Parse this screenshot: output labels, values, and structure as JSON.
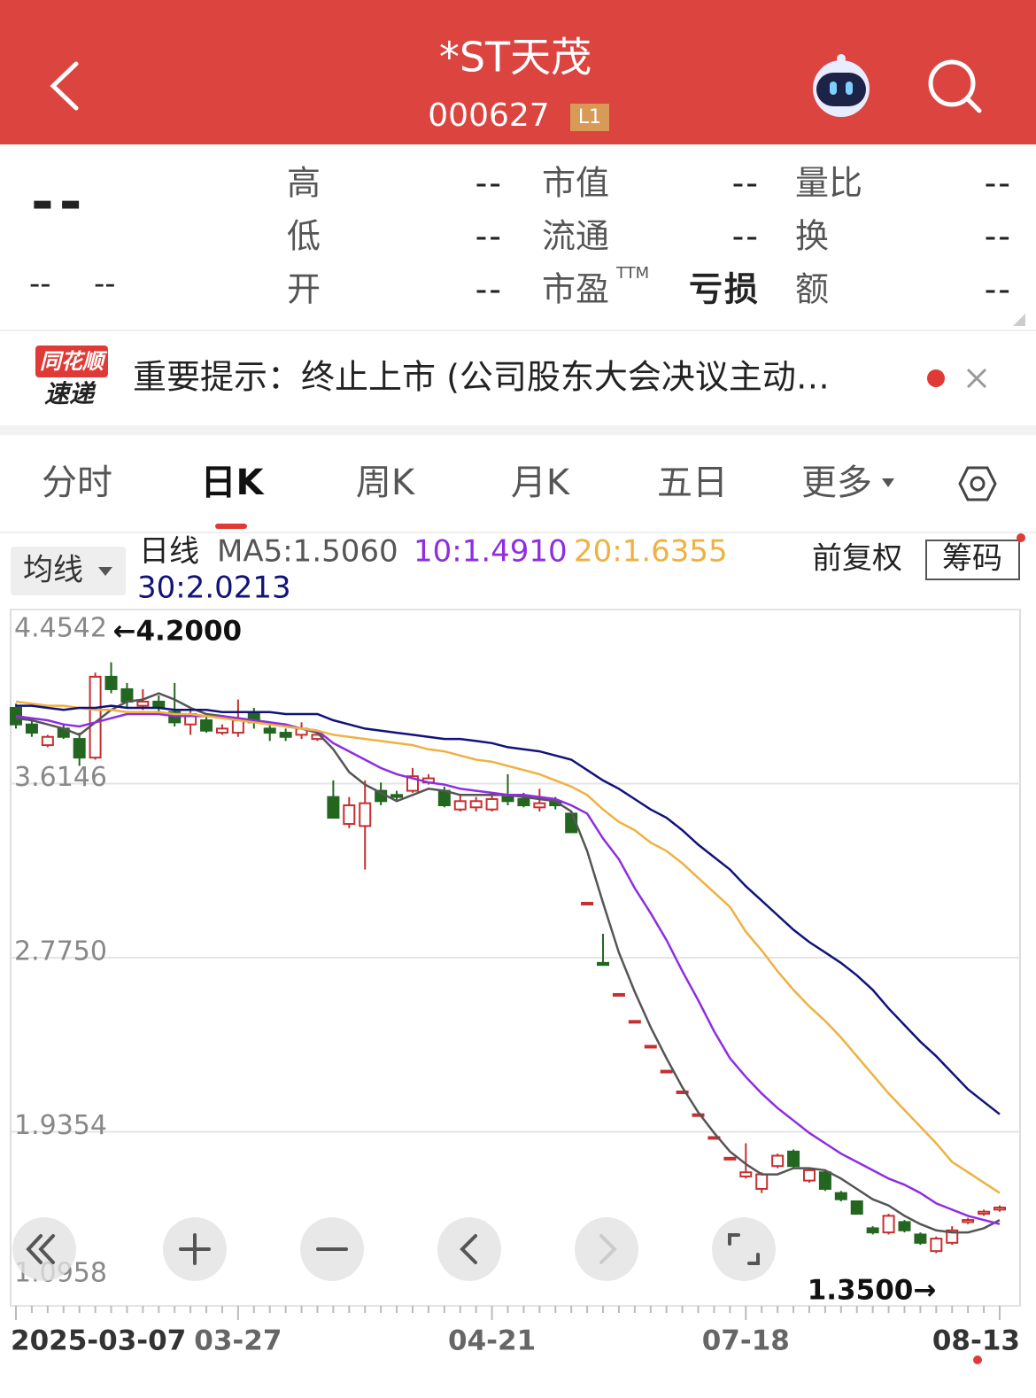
{
  "header": {
    "title": "*ST天茂",
    "code": "000627",
    "badge": "L1"
  },
  "quote": {
    "price": "--",
    "change": [
      "--",
      "--"
    ],
    "fields": [
      {
        "label": "高",
        "value": "--"
      },
      {
        "label": "低",
        "value": "--"
      },
      {
        "label": "开",
        "value": "--"
      },
      {
        "label": "市值",
        "value": "--"
      },
      {
        "label": "流通",
        "value": "--"
      },
      {
        "label": "市盈",
        "sup": "TTM",
        "value": "亏损"
      },
      {
        "label": "量比",
        "value": "--"
      },
      {
        "label": "换",
        "value": "--"
      },
      {
        "label": "额",
        "value": "--"
      }
    ]
  },
  "notice": {
    "logo_top": "同花顺",
    "logo_bottom": "速递",
    "text": "重要提示：终止上市 (公司股东大会决议主动…"
  },
  "tabs": [
    "分时",
    "日K",
    "周K",
    "月K",
    "五日",
    "更多"
  ],
  "toolbar": {
    "ma_button": "均线",
    "adjust": "前复权",
    "chips": "筹码"
  },
  "chart_data": {
    "type": "candlestick",
    "legend_title": "日线",
    "up_color": "#c62f2f",
    "down_color": "#23661f",
    "grid": true,
    "ylim": [
      1.0958,
      4.4542
    ],
    "yticks": [
      4.4542,
      3.6146,
      {
        "value": 2.775,
        "label": "2.7750"
      },
      1.9354,
      1.0958
    ],
    "annotations": [
      {
        "text": "←4.2000"
      },
      {
        "text": "1.3500→"
      }
    ],
    "categories": [
      "2025-03-07",
      null,
      null,
      null,
      null,
      null,
      null,
      null,
      null,
      null,
      null,
      null,
      null,
      null,
      "03-27",
      null,
      null,
      null,
      null,
      null,
      null,
      null,
      null,
      null,
      null,
      null,
      null,
      null,
      null,
      null,
      "04-21",
      null,
      null,
      null,
      null,
      null,
      null,
      null,
      null,
      null,
      null,
      null,
      null,
      null,
      null,
      null,
      "07-18",
      null,
      null,
      null,
      null,
      null,
      null,
      null,
      null,
      null,
      null,
      null,
      null,
      null,
      null,
      null,
      "08-13"
    ],
    "open": [
      3.98,
      3.9,
      3.8,
      3.88,
      3.83,
      3.74,
      4.13,
      4.07,
      3.99,
      4.01,
      3.96,
      3.9,
      3.92,
      3.86,
      3.86,
      3.95,
      3.88,
      3.86,
      3.85,
      3.83,
      3.55,
      3.42,
      3.41,
      3.58,
      3.56,
      3.58,
      3.62,
      3.58,
      3.49,
      3.5,
      3.49,
      3.55,
      3.54,
      3.5,
      3.53,
      3.47,
      3.04,
      2.75,
      2.6,
      2.47,
      2.35,
      2.23,
      2.13,
      2.02,
      1.91,
      1.81,
      1.72,
      1.66,
      1.77,
      1.84,
      1.7,
      1.74,
      1.64,
      1.6,
      1.47,
      1.45,
      1.5,
      1.44,
      1.36,
      1.4,
      1.5,
      1.54,
      1.56
    ],
    "high": [
      4.0,
      3.92,
      3.85,
      3.9,
      3.86,
      4.15,
      4.2,
      4.1,
      4.07,
      4.04,
      4.1,
      3.98,
      3.94,
      3.9,
      4.02,
      3.98,
      3.9,
      3.88,
      3.91,
      3.87,
      3.63,
      3.55,
      3.63,
      3.62,
      3.58,
      3.69,
      3.66,
      3.6,
      3.56,
      3.55,
      3.56,
      3.66,
      3.57,
      3.59,
      3.55,
      3.48,
      3.04,
      2.89,
      2.6,
      2.47,
      2.35,
      2.23,
      2.13,
      2.02,
      1.91,
      1.81,
      1.88,
      1.74,
      1.83,
      1.85,
      1.76,
      1.75,
      1.65,
      1.6,
      1.48,
      1.54,
      1.51,
      1.45,
      1.43,
      1.48,
      1.52,
      1.56,
      1.58
    ],
    "low": [
      3.88,
      3.84,
      3.79,
      3.83,
      3.7,
      3.73,
      4.05,
      3.98,
      3.97,
      3.96,
      3.89,
      3.85,
      3.86,
      3.85,
      3.84,
      3.88,
      3.82,
      3.82,
      3.83,
      3.82,
      3.45,
      3.4,
      3.2,
      3.51,
      3.53,
      3.57,
      3.61,
      3.5,
      3.48,
      3.48,
      3.48,
      3.51,
      3.5,
      3.48,
      3.49,
      3.38,
      3.04,
      2.74,
      2.6,
      2.47,
      2.35,
      2.23,
      2.13,
      2.02,
      1.91,
      1.81,
      1.71,
      1.64,
      1.76,
      1.76,
      1.69,
      1.65,
      1.6,
      1.54,
      1.44,
      1.44,
      1.45,
      1.39,
      1.35,
      1.39,
      1.49,
      1.53,
      1.55
    ],
    "close": [
      3.9,
      3.86,
      3.84,
      3.84,
      3.74,
      4.13,
      4.07,
      4.01,
      4.01,
      3.98,
      3.91,
      3.95,
      3.87,
      3.88,
      3.92,
      3.91,
      3.86,
      3.84,
      3.88,
      3.85,
      3.45,
      3.51,
      3.52,
      3.53,
      3.55,
      3.65,
      3.64,
      3.51,
      3.53,
      3.53,
      3.54,
      3.53,
      3.51,
      3.52,
      3.51,
      3.38,
      3.04,
      2.74,
      2.6,
      2.47,
      2.35,
      2.23,
      2.13,
      2.02,
      1.91,
      1.81,
      1.74,
      1.73,
      1.82,
      1.77,
      1.75,
      1.66,
      1.61,
      1.54,
      1.45,
      1.53,
      1.46,
      1.4,
      1.42,
      1.46,
      1.51,
      1.55,
      1.57
    ],
    "ma_lines": [
      {
        "name": "MA5:1.5060",
        "color": "#555555",
        "values": [
          3.93,
          3.92,
          3.9,
          3.88,
          3.85,
          3.91,
          3.97,
          4.01,
          4.02,
          4.05,
          4.02,
          3.98,
          3.95,
          3.94,
          3.93,
          3.92,
          3.91,
          3.89,
          3.88,
          3.86,
          3.78,
          3.67,
          3.61,
          3.57,
          3.53,
          3.56,
          3.59,
          3.58,
          3.56,
          3.56,
          3.56,
          3.56,
          3.55,
          3.54,
          3.53,
          3.48,
          3.29,
          3.04,
          2.8,
          2.61,
          2.44,
          2.29,
          2.15,
          2.03,
          1.93,
          1.84,
          1.78,
          1.73,
          1.73,
          1.76,
          1.76,
          1.75,
          1.71,
          1.66,
          1.61,
          1.58,
          1.53,
          1.49,
          1.46,
          1.45,
          1.45,
          1.47,
          1.51
        ]
      },
      {
        "name": "10:1.4910",
        "color": "#8e2de2",
        "values": [
          3.94,
          3.93,
          3.92,
          3.9,
          3.89,
          3.91,
          3.93,
          3.95,
          3.95,
          3.95,
          3.94,
          3.94,
          3.94,
          3.94,
          3.93,
          3.92,
          3.91,
          3.9,
          3.88,
          3.87,
          3.81,
          3.77,
          3.73,
          3.69,
          3.66,
          3.64,
          3.62,
          3.61,
          3.59,
          3.58,
          3.57,
          3.56,
          3.56,
          3.55,
          3.54,
          3.51,
          3.47,
          3.35,
          3.25,
          3.11,
          2.99,
          2.86,
          2.71,
          2.57,
          2.42,
          2.29,
          2.2,
          2.12,
          2.05,
          1.99,
          1.93,
          1.88,
          1.83,
          1.79,
          1.75,
          1.71,
          1.68,
          1.64,
          1.59,
          1.56,
          1.53,
          1.51,
          1.49
        ]
      },
      {
        "name": "20:1.6355",
        "color": "#efb141",
        "values": [
          4.01,
          4.0,
          3.99,
          3.99,
          3.98,
          3.97,
          3.97,
          3.96,
          3.96,
          3.96,
          3.95,
          3.95,
          3.94,
          3.93,
          3.92,
          3.91,
          3.9,
          3.89,
          3.88,
          3.87,
          3.85,
          3.84,
          3.83,
          3.82,
          3.81,
          3.8,
          3.78,
          3.77,
          3.75,
          3.73,
          3.72,
          3.7,
          3.68,
          3.66,
          3.63,
          3.6,
          3.56,
          3.49,
          3.43,
          3.39,
          3.33,
          3.29,
          3.23,
          3.16,
          3.09,
          3.02,
          2.9,
          2.81,
          2.71,
          2.62,
          2.54,
          2.47,
          2.39,
          2.3,
          2.21,
          2.12,
          2.04,
          1.96,
          1.88,
          1.79,
          1.74,
          1.69,
          1.64
        ]
      },
      {
        "name": "30:2.0213",
        "color": "#12127a",
        "values": [
          3.99,
          3.99,
          3.98,
          3.97,
          3.98,
          3.98,
          3.99,
          3.98,
          3.98,
          3.98,
          3.97,
          3.97,
          3.97,
          3.96,
          3.96,
          3.96,
          3.96,
          3.95,
          3.95,
          3.95,
          3.92,
          3.9,
          3.88,
          3.87,
          3.86,
          3.85,
          3.84,
          3.83,
          3.83,
          3.82,
          3.81,
          3.79,
          3.78,
          3.77,
          3.75,
          3.73,
          3.68,
          3.63,
          3.59,
          3.54,
          3.49,
          3.45,
          3.39,
          3.32,
          3.26,
          3.2,
          3.12,
          3.05,
          2.98,
          2.91,
          2.85,
          2.8,
          2.75,
          2.69,
          2.62,
          2.53,
          2.45,
          2.37,
          2.3,
          2.22,
          2.14,
          2.08,
          2.02
        ]
      }
    ]
  }
}
